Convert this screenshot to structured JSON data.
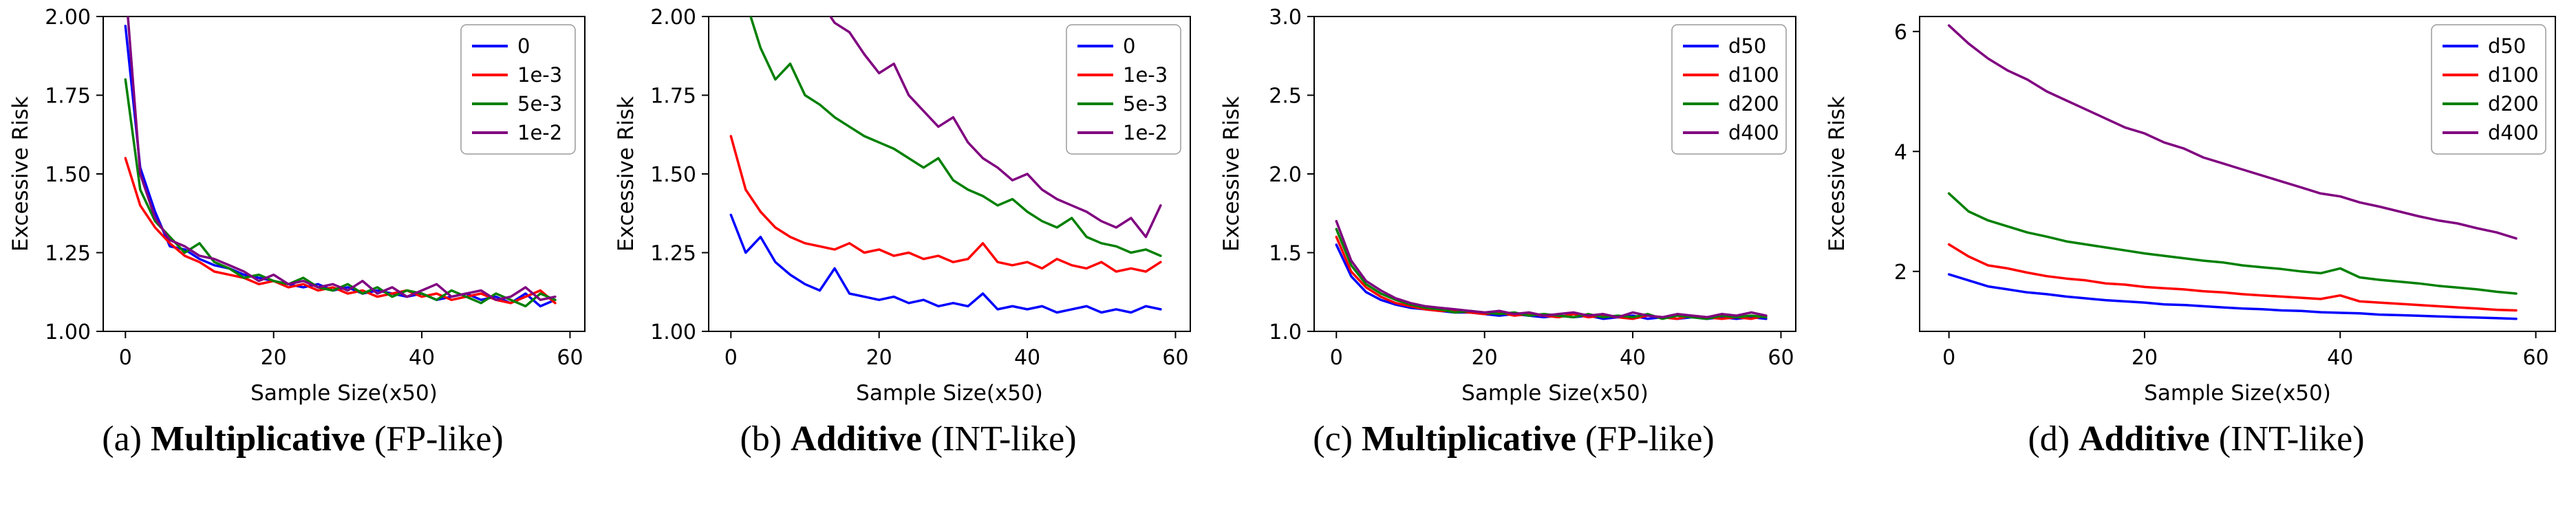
{
  "figure": {
    "background": "#ffffff",
    "axis_color": "#000000",
    "legend_border_color": "#9a9a9a"
  },
  "captions": [
    {
      "prefix": "(a) ",
      "word": "Multiplicative",
      "suffix": " (FP-like)"
    },
    {
      "prefix": "(b) ",
      "word": "Additive",
      "suffix": " (INT-like)"
    },
    {
      "prefix": "(c) ",
      "word": "Multiplicative",
      "suffix": " (FP-like)"
    },
    {
      "prefix": "(d) ",
      "word": "Additive",
      "suffix": " (INT-like)"
    }
  ],
  "chart_data": [
    {
      "type": "line",
      "title": "",
      "xlabel": "Sample Size(x50)",
      "ylabel": "Excessive Risk",
      "xlim": [
        -3,
        62
      ],
      "ylim": [
        1.0,
        2.0
      ],
      "grid": false,
      "legend_position": "upper right",
      "xticks": {
        "values": [
          0,
          20,
          40,
          60
        ],
        "labels": [
          "0",
          "20",
          "40",
          "60"
        ]
      },
      "yticks": {
        "values": [
          1.0,
          1.25,
          1.5,
          1.75,
          2.0
        ],
        "labels": [
          "1.00",
          "1.25",
          "1.50",
          "1.75",
          "2.00"
        ]
      },
      "x": [
        0,
        2,
        4,
        6,
        8,
        10,
        12,
        14,
        16,
        18,
        20,
        22,
        24,
        26,
        28,
        30,
        32,
        34,
        36,
        38,
        40,
        42,
        44,
        46,
        48,
        50,
        52,
        54,
        56,
        58
      ],
      "series": [
        {
          "name": "0",
          "color": "#0000ff",
          "values": [
            1.97,
            1.52,
            1.38,
            1.27,
            1.26,
            1.23,
            1.21,
            1.2,
            1.18,
            1.17,
            1.16,
            1.15,
            1.14,
            1.15,
            1.13,
            1.14,
            1.12,
            1.13,
            1.12,
            1.11,
            1.12,
            1.1,
            1.11,
            1.12,
            1.1,
            1.11,
            1.09,
            1.12,
            1.08,
            1.1
          ]
        },
        {
          "name": "1e-3",
          "color": "#ff0000",
          "values": [
            1.55,
            1.4,
            1.33,
            1.28,
            1.24,
            1.22,
            1.19,
            1.18,
            1.17,
            1.15,
            1.16,
            1.14,
            1.15,
            1.13,
            1.14,
            1.12,
            1.13,
            1.11,
            1.12,
            1.13,
            1.11,
            1.12,
            1.1,
            1.11,
            1.12,
            1.1,
            1.09,
            1.11,
            1.13,
            1.09
          ]
        },
        {
          "name": "5e-3",
          "color": "#008000",
          "values": [
            1.8,
            1.45,
            1.35,
            1.3,
            1.25,
            1.28,
            1.22,
            1.2,
            1.17,
            1.18,
            1.16,
            1.15,
            1.17,
            1.14,
            1.13,
            1.15,
            1.12,
            1.14,
            1.11,
            1.13,
            1.12,
            1.1,
            1.13,
            1.11,
            1.09,
            1.12,
            1.1,
            1.08,
            1.12,
            1.1
          ]
        },
        {
          "name": "1e-2",
          "color": "#800080",
          "values": [
            2.1,
            1.5,
            1.36,
            1.29,
            1.27,
            1.24,
            1.23,
            1.21,
            1.19,
            1.16,
            1.18,
            1.15,
            1.16,
            1.14,
            1.15,
            1.13,
            1.16,
            1.12,
            1.14,
            1.11,
            1.13,
            1.15,
            1.11,
            1.12,
            1.13,
            1.1,
            1.11,
            1.14,
            1.1,
            1.11
          ]
        }
      ]
    },
    {
      "type": "line",
      "title": "",
      "xlabel": "Sample Size(x50)",
      "ylabel": "Excessive Risk",
      "xlim": [
        -3,
        62
      ],
      "ylim": [
        1.0,
        2.0
      ],
      "grid": false,
      "legend_position": "upper right",
      "xticks": {
        "values": [
          0,
          20,
          40,
          60
        ],
        "labels": [
          "0",
          "20",
          "40",
          "60"
        ]
      },
      "yticks": {
        "values": [
          1.0,
          1.25,
          1.5,
          1.75,
          2.0
        ],
        "labels": [
          "1.00",
          "1.25",
          "1.50",
          "1.75",
          "2.00"
        ]
      },
      "x": [
        0,
        2,
        4,
        6,
        8,
        10,
        12,
        14,
        16,
        18,
        20,
        22,
        24,
        26,
        28,
        30,
        32,
        34,
        36,
        38,
        40,
        42,
        44,
        46,
        48,
        50,
        52,
        54,
        56,
        58
      ],
      "series": [
        {
          "name": "0",
          "color": "#0000ff",
          "values": [
            1.37,
            1.25,
            1.3,
            1.22,
            1.18,
            1.15,
            1.13,
            1.2,
            1.12,
            1.11,
            1.1,
            1.11,
            1.09,
            1.1,
            1.08,
            1.09,
            1.08,
            1.12,
            1.07,
            1.08,
            1.07,
            1.08,
            1.06,
            1.07,
            1.08,
            1.06,
            1.07,
            1.06,
            1.08,
            1.07
          ]
        },
        {
          "name": "1e-3",
          "color": "#ff0000",
          "values": [
            1.62,
            1.45,
            1.38,
            1.33,
            1.3,
            1.28,
            1.27,
            1.26,
            1.28,
            1.25,
            1.26,
            1.24,
            1.25,
            1.23,
            1.24,
            1.22,
            1.23,
            1.28,
            1.22,
            1.21,
            1.22,
            1.2,
            1.23,
            1.21,
            1.2,
            1.22,
            1.19,
            1.2,
            1.19,
            1.22
          ]
        },
        {
          "name": "5e-3",
          "color": "#008000",
          "values": [
            2.3,
            2.05,
            1.9,
            1.8,
            1.85,
            1.75,
            1.72,
            1.68,
            1.65,
            1.62,
            1.6,
            1.58,
            1.55,
            1.52,
            1.55,
            1.48,
            1.45,
            1.43,
            1.4,
            1.42,
            1.38,
            1.35,
            1.33,
            1.36,
            1.3,
            1.28,
            1.27,
            1.25,
            1.26,
            1.24
          ]
        },
        {
          "name": "1e-2",
          "color": "#800080",
          "values": [
            2.8,
            2.6,
            2.45,
            2.3,
            2.2,
            2.1,
            2.05,
            1.98,
            1.95,
            1.88,
            1.82,
            1.85,
            1.75,
            1.7,
            1.65,
            1.68,
            1.6,
            1.55,
            1.52,
            1.48,
            1.5,
            1.45,
            1.42,
            1.4,
            1.38,
            1.35,
            1.33,
            1.36,
            1.3,
            1.4
          ]
        }
      ]
    },
    {
      "type": "line",
      "title": "",
      "xlabel": "Sample Size(x50)",
      "ylabel": "Excessive Risk",
      "xlim": [
        -3,
        62
      ],
      "ylim": [
        1.0,
        3.0
      ],
      "grid": false,
      "legend_position": "upper right",
      "xticks": {
        "values": [
          0,
          20,
          40,
          60
        ],
        "labels": [
          "0",
          "20",
          "40",
          "60"
        ]
      },
      "yticks": {
        "values": [
          1.0,
          1.5,
          2.0,
          2.5,
          3.0
        ],
        "labels": [
          "1.0",
          "1.5",
          "2.0",
          "2.5",
          "3.0"
        ]
      },
      "x": [
        0,
        2,
        4,
        6,
        8,
        10,
        12,
        14,
        16,
        18,
        20,
        22,
        24,
        26,
        28,
        30,
        32,
        34,
        36,
        38,
        40,
        42,
        44,
        46,
        48,
        50,
        52,
        54,
        56,
        58
      ],
      "series": [
        {
          "name": "d50",
          "color": "#0000ff",
          "values": [
            1.55,
            1.35,
            1.25,
            1.2,
            1.17,
            1.15,
            1.14,
            1.13,
            1.12,
            1.12,
            1.11,
            1.1,
            1.11,
            1.1,
            1.09,
            1.1,
            1.09,
            1.1,
            1.08,
            1.09,
            1.1,
            1.08,
            1.09,
            1.08,
            1.09,
            1.08,
            1.09,
            1.08,
            1.09,
            1.08
          ]
        },
        {
          "name": "d100",
          "color": "#ff0000",
          "values": [
            1.6,
            1.38,
            1.28,
            1.22,
            1.18,
            1.16,
            1.14,
            1.13,
            1.13,
            1.12,
            1.11,
            1.12,
            1.1,
            1.11,
            1.1,
            1.09,
            1.11,
            1.09,
            1.1,
            1.09,
            1.08,
            1.1,
            1.09,
            1.08,
            1.1,
            1.09,
            1.08,
            1.09,
            1.08,
            1.1
          ]
        },
        {
          "name": "d200",
          "color": "#008000",
          "values": [
            1.65,
            1.42,
            1.3,
            1.24,
            1.2,
            1.17,
            1.15,
            1.14,
            1.12,
            1.13,
            1.12,
            1.11,
            1.12,
            1.1,
            1.11,
            1.1,
            1.09,
            1.11,
            1.09,
            1.1,
            1.09,
            1.11,
            1.08,
            1.1,
            1.09,
            1.08,
            1.1,
            1.09,
            1.1,
            1.09
          ]
        },
        {
          "name": "d400",
          "color": "#800080",
          "values": [
            1.7,
            1.45,
            1.32,
            1.26,
            1.21,
            1.18,
            1.16,
            1.15,
            1.14,
            1.13,
            1.12,
            1.13,
            1.11,
            1.12,
            1.1,
            1.11,
            1.12,
            1.1,
            1.11,
            1.09,
            1.12,
            1.1,
            1.09,
            1.11,
            1.1,
            1.09,
            1.11,
            1.1,
            1.12,
            1.1
          ]
        }
      ]
    },
    {
      "type": "line",
      "title": "",
      "xlabel": "Sample Size(x50)",
      "ylabel": "Excessive Risk",
      "xlim": [
        -3,
        62
      ],
      "ylim": [
        1.0,
        6.25
      ],
      "grid": false,
      "legend_position": "upper right",
      "xticks": {
        "values": [
          0,
          20,
          40,
          60
        ],
        "labels": [
          "0",
          "20",
          "40",
          "60"
        ]
      },
      "yticks": {
        "values": [
          2,
          4,
          6
        ],
        "labels": [
          "2",
          "4",
          "6"
        ]
      },
      "x": [
        0,
        2,
        4,
        6,
        8,
        10,
        12,
        14,
        16,
        18,
        20,
        22,
        24,
        26,
        28,
        30,
        32,
        34,
        36,
        38,
        40,
        42,
        44,
        46,
        48,
        50,
        52,
        54,
        56,
        58
      ],
      "series": [
        {
          "name": "d50",
          "color": "#0000ff",
          "values": [
            1.95,
            1.85,
            1.75,
            1.7,
            1.65,
            1.62,
            1.58,
            1.55,
            1.52,
            1.5,
            1.48,
            1.45,
            1.44,
            1.42,
            1.4,
            1.38,
            1.37,
            1.35,
            1.34,
            1.32,
            1.31,
            1.3,
            1.28,
            1.27,
            1.26,
            1.25,
            1.24,
            1.23,
            1.22,
            1.21
          ]
        },
        {
          "name": "d100",
          "color": "#ff0000",
          "values": [
            2.45,
            2.25,
            2.1,
            2.05,
            1.98,
            1.92,
            1.88,
            1.85,
            1.8,
            1.78,
            1.74,
            1.72,
            1.7,
            1.67,
            1.65,
            1.62,
            1.6,
            1.58,
            1.56,
            1.54,
            1.6,
            1.5,
            1.48,
            1.46,
            1.44,
            1.42,
            1.4,
            1.38,
            1.36,
            1.35
          ]
        },
        {
          "name": "d200",
          "color": "#008000",
          "values": [
            3.3,
            3.0,
            2.85,
            2.75,
            2.65,
            2.58,
            2.5,
            2.45,
            2.4,
            2.35,
            2.3,
            2.26,
            2.22,
            2.18,
            2.15,
            2.1,
            2.07,
            2.04,
            2.0,
            1.97,
            2.05,
            1.9,
            1.86,
            1.83,
            1.8,
            1.76,
            1.73,
            1.7,
            1.66,
            1.63
          ]
        },
        {
          "name": "d400",
          "color": "#800080",
          "values": [
            6.1,
            5.8,
            5.55,
            5.35,
            5.2,
            5.0,
            4.85,
            4.7,
            4.55,
            4.4,
            4.3,
            4.15,
            4.05,
            3.9,
            3.8,
            3.7,
            3.6,
            3.5,
            3.4,
            3.3,
            3.25,
            3.15,
            3.08,
            3.0,
            2.92,
            2.85,
            2.8,
            2.72,
            2.65,
            2.55
          ]
        }
      ]
    }
  ]
}
